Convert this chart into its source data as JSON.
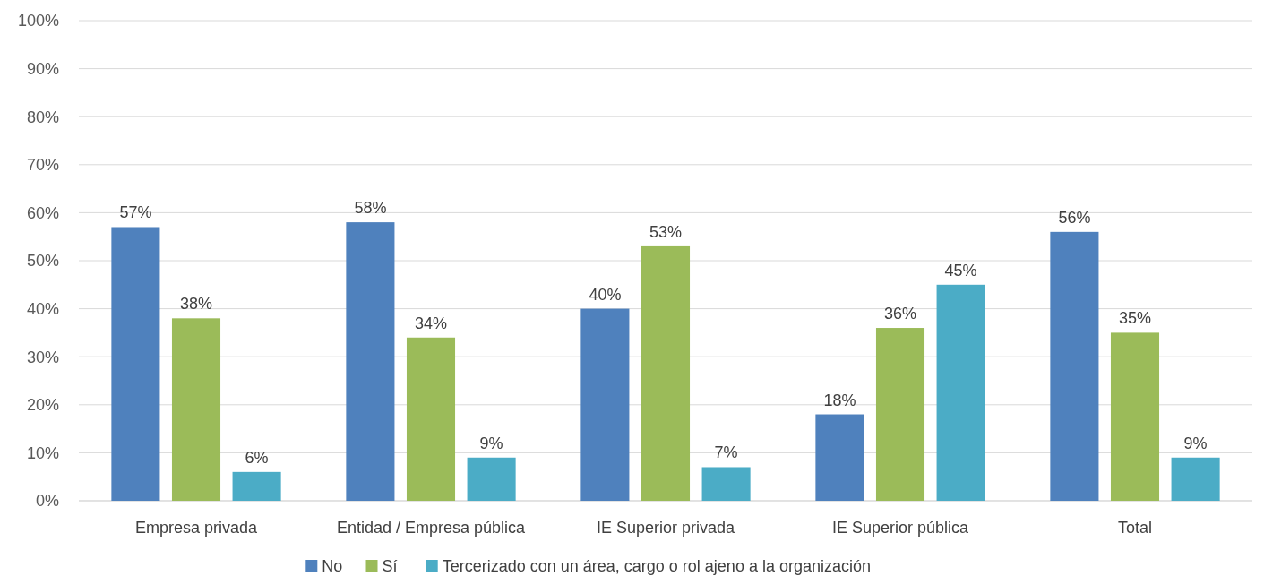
{
  "chart_data": {
    "type": "bar",
    "categories": [
      "Empresa privada",
      "Entidad / Empresa pública",
      "IE Superior privada",
      "IE Superior pública",
      "Total"
    ],
    "series": [
      {
        "name": "No",
        "color": "#4f81bd",
        "values": [
          57,
          58,
          40,
          18,
          56
        ],
        "value_labels": [
          "57%",
          "58%",
          "40%",
          "18%",
          "56%"
        ]
      },
      {
        "name": "Sí",
        "color": "#9bbb59",
        "values": [
          38,
          34,
          53,
          36,
          35
        ],
        "value_labels": [
          "38%",
          "34%",
          "53%",
          "36%",
          "35%"
        ]
      },
      {
        "name": "Tercerizado con un área, cargo o rol ajeno a la organización",
        "color": "#4bacc6",
        "values": [
          6,
          9,
          7,
          45,
          9
        ],
        "value_labels": [
          "6%",
          "9%",
          "7%",
          "45%",
          "9%"
        ]
      }
    ],
    "ylim": [
      0,
      100
    ],
    "yticks": [
      {
        "value": 0,
        "label": "0%"
      },
      {
        "value": 10,
        "label": "10%"
      },
      {
        "value": 20,
        "label": "20%"
      },
      {
        "value": 30,
        "label": "30%"
      },
      {
        "value": 40,
        "label": "40%"
      },
      {
        "value": 50,
        "label": "50%"
      },
      {
        "value": 60,
        "label": "60%"
      },
      {
        "value": 70,
        "label": "70%"
      },
      {
        "value": 80,
        "label": "80%"
      },
      {
        "value": 90,
        "label": "90%"
      },
      {
        "value": 100,
        "label": "100%"
      }
    ],
    "grid": "y",
    "legend": "bottom"
  }
}
